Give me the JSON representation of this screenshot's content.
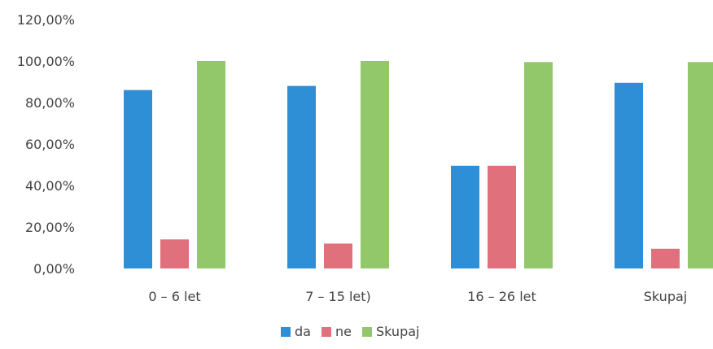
{
  "chart_data": {
    "type": "bar",
    "title": "",
    "xlabel": "",
    "ylabel": "",
    "categories": [
      "0 – 6 let",
      "7 – 15 let)",
      "16 – 26 let",
      "Skupaj"
    ],
    "series": [
      {
        "name": "da",
        "values": [
          86.0,
          88.0,
          49.5,
          89.5
        ],
        "color": "#2e8fd6"
      },
      {
        "name": "ne",
        "values": [
          14.0,
          12.0,
          49.5,
          9.5
        ],
        "color": "#e0707c"
      },
      {
        "name": "Skupaj",
        "values": [
          100.0,
          100.0,
          99.5,
          99.5
        ],
        "color": "#92c76a"
      }
    ],
    "ylim": [
      0,
      120
    ],
    "yticks": [
      "0,00%",
      "20,00%",
      "40,00%",
      "60,00%",
      "80,00%",
      "100,00%",
      "120,00%"
    ],
    "grid": false,
    "legend_position": "bottom"
  }
}
